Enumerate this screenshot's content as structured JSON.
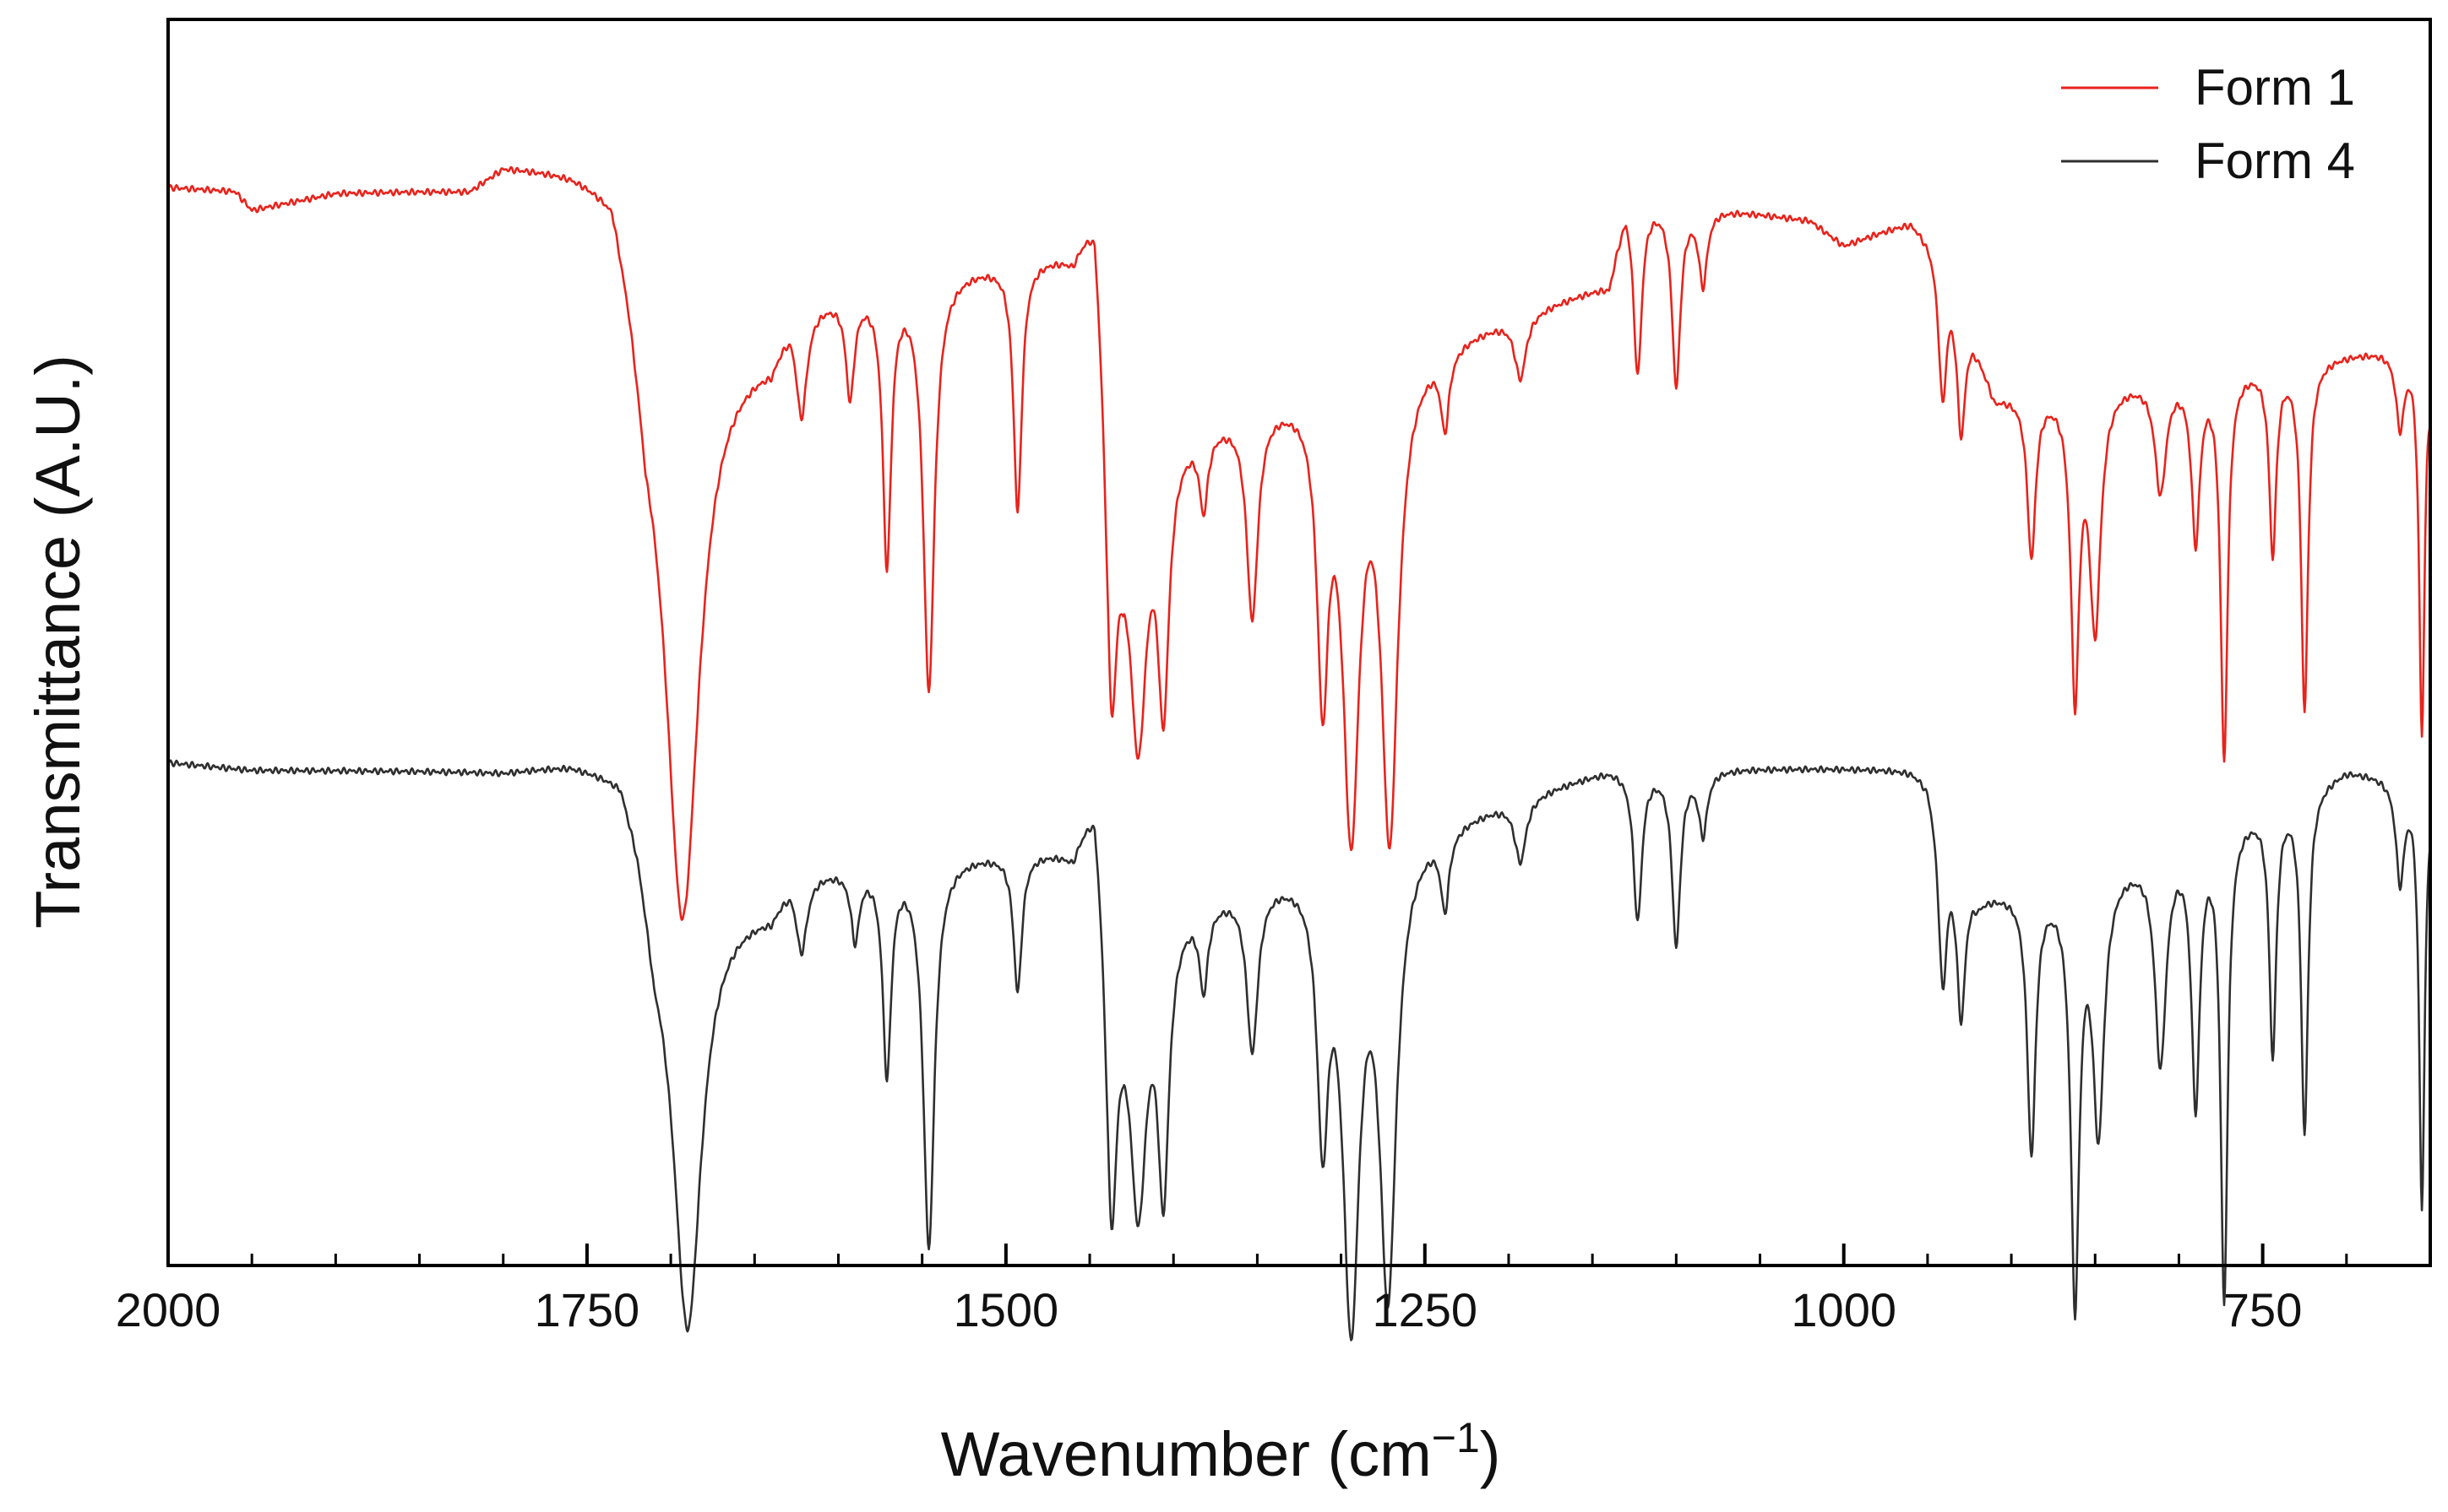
{
  "chart_data": {
    "type": "line",
    "title": "",
    "xlabel": "Wavenumber (cm",
    "xlabel_sup": "−1",
    "xlabel_close": ")",
    "ylabel": "Transmittance (A.U.)",
    "xlim": [
      2000,
      650
    ],
    "x_reversed": true,
    "ylim": [
      0,
      1
    ],
    "y_ticks_labeled": false,
    "x_ticks": [
      2000,
      1750,
      1500,
      1250,
      1000,
      750
    ],
    "x_tick_labels": [
      "2000",
      "1750",
      "1500",
      "1250",
      "1000",
      "750"
    ],
    "x_minor_ticks": [
      1950,
      1900,
      1850,
      1800,
      1700,
      1650,
      1600,
      1550,
      1450,
      1400,
      1350,
      1300,
      1200,
      1150,
      1100,
      1050,
      950,
      900,
      850,
      800,
      700
    ],
    "grid": false,
    "legend_position": "top-right",
    "series": [
      {
        "name": "Form 1",
        "color": "#e8231c",
        "baseline": 0.866,
        "edge_points": [
          [
            2000,
            0.866
          ],
          [
            1960,
            0.863
          ],
          [
            1950,
            0.848
          ],
          [
            1900,
            0.862
          ],
          [
            1820,
            0.866
          ],
          [
            1800,
            0.886
          ],
          [
            1760,
            0.886
          ],
          [
            1735,
            0.88
          ],
          [
            1725,
            0.82
          ],
          [
            1715,
            0.74
          ],
          [
            1640,
            0.74
          ],
          [
            1628,
            0.78
          ],
          [
            1460,
            0.82
          ],
          [
            1447,
            0.87
          ],
          [
            1440,
            0.76
          ],
          [
            1430,
            0.66
          ],
          [
            1140,
            0.79
          ],
          [
            1130,
            0.86
          ],
          [
            1020,
            0.84
          ],
          [
            1000,
            0.82
          ],
          [
            960,
            0.84
          ],
          [
            950,
            0.83
          ],
          [
            940,
            0.82
          ],
          [
            910,
            0.7
          ],
          [
            652,
            0.74
          ],
          [
            650,
            0.72
          ]
        ],
        "peaks": [
          {
            "x": 1693,
            "depth": 0.92,
            "width": 12
          },
          {
            "x": 1622,
            "depth": 0.17,
            "width": 4
          },
          {
            "x": 1593,
            "depth": 0.16,
            "width": 3
          },
          {
            "x": 1571,
            "depth": 0.44,
            "width": 3
          },
          {
            "x": 1546,
            "depth": 0.66,
            "width": 4
          },
          {
            "x": 1493,
            "depth": 0.4,
            "width": 3
          },
          {
            "x": 1437,
            "depth": 0.5,
            "width": 4
          },
          {
            "x": 1421,
            "depth": 0.45,
            "width": 6
          },
          {
            "x": 1406,
            "depth": 0.4,
            "width": 4
          },
          {
            "x": 1382,
            "depth": 0.12,
            "width": 3
          },
          {
            "x": 1353,
            "depth": 0.33,
            "width": 4
          },
          {
            "x": 1311,
            "depth": 0.46,
            "width": 4
          },
          {
            "x": 1294,
            "depth": 0.7,
            "width": 6
          },
          {
            "x": 1271,
            "depth": 0.74,
            "width": 6
          },
          {
            "x": 1238,
            "depth": 0.12,
            "width": 3
          },
          {
            "x": 1193,
            "depth": 0.1,
            "width": 4
          },
          {
            "x": 1123,
            "depth": 0.28,
            "width": 3
          },
          {
            "x": 1100,
            "depth": 0.29,
            "width": 3
          },
          {
            "x": 1084,
            "depth": 0.12,
            "width": 3
          },
          {
            "x": 941,
            "depth": 0.24,
            "width": 3
          },
          {
            "x": 930,
            "depth": 0.21,
            "width": 3
          },
          {
            "x": 888,
            "depth": 0.26,
            "width": 3
          },
          {
            "x": 862,
            "depth": 0.48,
            "width": 3
          },
          {
            "x": 850,
            "depth": 0.38,
            "width": 4
          },
          {
            "x": 811,
            "depth": 0.18,
            "width": 4
          },
          {
            "x": 790,
            "depth": 0.26,
            "width": 3
          },
          {
            "x": 773,
            "depth": 0.62,
            "width": 2.5
          },
          {
            "x": 744,
            "depth": 0.3,
            "width": 2.5
          },
          {
            "x": 725,
            "depth": 0.56,
            "width": 2.5
          },
          {
            "x": 668,
            "depth": 0.12,
            "width": 3
          },
          {
            "x": 655,
            "depth": 0.62,
            "width": 2
          }
        ]
      },
      {
        "name": "Form 4",
        "color": "#2f2f2f",
        "baseline": 0.404,
        "edge_points": [
          [
            2000,
            0.404
          ],
          [
            1950,
            0.398
          ],
          [
            1800,
            0.398
          ],
          [
            1760,
            0.406
          ],
          [
            1730,
            0.402
          ],
          [
            1720,
            0.36
          ],
          [
            1710,
            0.29
          ],
          [
            1640,
            0.29
          ],
          [
            1628,
            0.32
          ],
          [
            1460,
            0.34
          ],
          [
            1447,
            0.4
          ],
          [
            1440,
            0.33
          ],
          [
            1430,
            0.28
          ],
          [
            1140,
            0.4
          ],
          [
            1130,
            0.4
          ],
          [
            960,
            0.4
          ],
          [
            950,
            0.395
          ],
          [
            935,
            0.34
          ],
          [
            920,
            0.3
          ],
          [
            860,
            0.31
          ],
          [
            700,
            0.4
          ],
          [
            652,
            0.39
          ],
          [
            650,
            0.39
          ]
        ],
        "peaks": [
          {
            "x": 1690,
            "depth": 0.68,
            "width": 10
          },
          {
            "x": 1622,
            "depth": 0.12,
            "width": 4
          },
          {
            "x": 1590,
            "depth": 0.11,
            "width": 3
          },
          {
            "x": 1571,
            "depth": 0.33,
            "width": 3
          },
          {
            "x": 1546,
            "depth": 0.62,
            "width": 4
          },
          {
            "x": 1493,
            "depth": 0.22,
            "width": 3
          },
          {
            "x": 1437,
            "depth": 0.5,
            "width": 4
          },
          {
            "x": 1421,
            "depth": 0.44,
            "width": 6
          },
          {
            "x": 1406,
            "depth": 0.42,
            "width": 4
          },
          {
            "x": 1382,
            "depth": 0.13,
            "width": 3
          },
          {
            "x": 1353,
            "depth": 0.26,
            "width": 4
          },
          {
            "x": 1311,
            "depth": 0.4,
            "width": 4
          },
          {
            "x": 1294,
            "depth": 0.72,
            "width": 6
          },
          {
            "x": 1272,
            "depth": 0.7,
            "width": 6
          },
          {
            "x": 1238,
            "depth": 0.12,
            "width": 3
          },
          {
            "x": 1193,
            "depth": 0.1,
            "width": 4
          },
          {
            "x": 1123,
            "depth": 0.24,
            "width": 3
          },
          {
            "x": 1100,
            "depth": 0.28,
            "width": 3
          },
          {
            "x": 1084,
            "depth": 0.1,
            "width": 3
          },
          {
            "x": 941,
            "depth": 0.26,
            "width": 3
          },
          {
            "x": 930,
            "depth": 0.24,
            "width": 3
          },
          {
            "x": 888,
            "depth": 0.42,
            "width": 3
          },
          {
            "x": 862,
            "depth": 0.66,
            "width": 3
          },
          {
            "x": 848,
            "depth": 0.4,
            "width": 4
          },
          {
            "x": 811,
            "depth": 0.34,
            "width": 4
          },
          {
            "x": 790,
            "depth": 0.42,
            "width": 3
          },
          {
            "x": 773,
            "depth": 0.76,
            "width": 2.5
          },
          {
            "x": 744,
            "depth": 0.4,
            "width": 2.5
          },
          {
            "x": 725,
            "depth": 0.55,
            "width": 2.5
          },
          {
            "x": 668,
            "depth": 0.16,
            "width": 3
          },
          {
            "x": 655,
            "depth": 0.68,
            "width": 2
          }
        ]
      }
    ]
  }
}
